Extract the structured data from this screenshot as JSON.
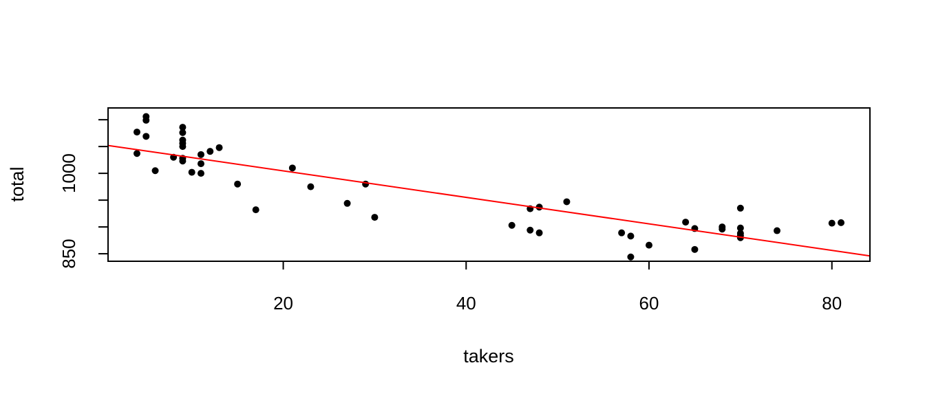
{
  "chart_data": {
    "type": "scatter",
    "title": "",
    "xlabel": "takers",
    "ylabel": "total",
    "xlim": [
      0.84,
      84.16
    ],
    "ylim": [
      836,
      1122
    ],
    "x_ticks": [
      20,
      40,
      60,
      80
    ],
    "x_tick_labels": [
      "20",
      "40",
      "60",
      "80"
    ],
    "y_ticks": [
      850,
      900,
      950,
      1000,
      1050,
      1100
    ],
    "y_tick_labels": [
      "850",
      "",
      "",
      "1000",
      "",
      ""
    ],
    "grid": false,
    "legend": "none",
    "point_color": "#000000",
    "line_color": "#ff0000",
    "points": [
      {
        "x": 4,
        "y": 1077
      },
      {
        "x": 4,
        "y": 1037
      },
      {
        "x": 5,
        "y": 1106
      },
      {
        "x": 5,
        "y": 1099
      },
      {
        "x": 5,
        "y": 1069
      },
      {
        "x": 6,
        "y": 1005
      },
      {
        "x": 8,
        "y": 1030
      },
      {
        "x": 9,
        "y": 1086
      },
      {
        "x": 9,
        "y": 1076
      },
      {
        "x": 9,
        "y": 1062
      },
      {
        "x": 9,
        "y": 1056
      },
      {
        "x": 9,
        "y": 1050
      },
      {
        "x": 9,
        "y": 1028
      },
      {
        "x": 9,
        "y": 1023
      },
      {
        "x": 10,
        "y": 1002
      },
      {
        "x": 11,
        "y": 1035
      },
      {
        "x": 11,
        "y": 1018
      },
      {
        "x": 11,
        "y": 1000
      },
      {
        "x": 12,
        "y": 1041
      },
      {
        "x": 13,
        "y": 1048
      },
      {
        "x": 15,
        "y": 980
      },
      {
        "x": 17,
        "y": 932
      },
      {
        "x": 21,
        "y": 1010
      },
      {
        "x": 23,
        "y": 975
      },
      {
        "x": 27,
        "y": 944
      },
      {
        "x": 29,
        "y": 980
      },
      {
        "x": 30,
        "y": 918
      },
      {
        "x": 45,
        "y": 903
      },
      {
        "x": 47,
        "y": 934
      },
      {
        "x": 47,
        "y": 894
      },
      {
        "x": 48,
        "y": 937
      },
      {
        "x": 48,
        "y": 889
      },
      {
        "x": 51,
        "y": 947
      },
      {
        "x": 57,
        "y": 889
      },
      {
        "x": 58,
        "y": 883
      },
      {
        "x": 58,
        "y": 844
      },
      {
        "x": 60,
        "y": 866
      },
      {
        "x": 64,
        "y": 909
      },
      {
        "x": 65,
        "y": 897
      },
      {
        "x": 65,
        "y": 858
      },
      {
        "x": 68,
        "y": 900
      },
      {
        "x": 68,
        "y": 896
      },
      {
        "x": 70,
        "y": 935
      },
      {
        "x": 70,
        "y": 898
      },
      {
        "x": 70,
        "y": 888
      },
      {
        "x": 70,
        "y": 884
      },
      {
        "x": 70,
        "y": 880
      },
      {
        "x": 74,
        "y": 893
      },
      {
        "x": 80,
        "y": 907
      },
      {
        "x": 81,
        "y": 908
      }
    ],
    "regression_line": {
      "x": [
        0.84,
        84.16
      ],
      "y": [
        1052,
        846
      ]
    }
  }
}
